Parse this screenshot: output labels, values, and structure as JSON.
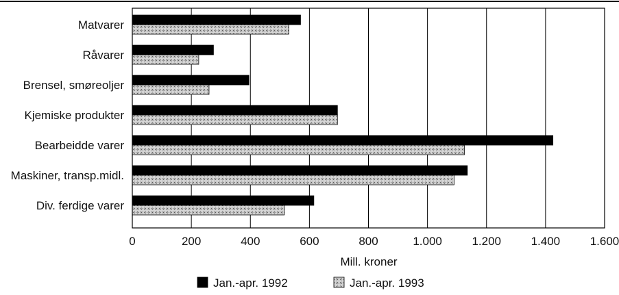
{
  "chart_data": {
    "type": "bar",
    "orientation": "horizontal",
    "title": "",
    "xlabel": "Mill. kroner",
    "ylabel": "",
    "categories": [
      "Matvarer",
      "Råvarer",
      "Brensel, smøreoljer",
      "Kjemiske produkter",
      "Bearbeidde varer",
      "Maskiner, transp.midl.",
      "Div. ferdige varer"
    ],
    "series": [
      {
        "name": "Jan.-apr. 1992",
        "color": "#000000",
        "pattern": "solid",
        "values": [
          570,
          275,
          395,
          695,
          1425,
          1135,
          615
        ]
      },
      {
        "name": "Jan.-apr. 1993",
        "color": "#b8b8b8",
        "pattern": "stipple",
        "values": [
          530,
          225,
          260,
          695,
          1125,
          1090,
          515
        ]
      }
    ],
    "xlim": [
      0,
      1600
    ],
    "xticks": [
      0,
      200,
      400,
      600,
      800,
      1000,
      1200,
      1400,
      1600
    ],
    "xtick_labels": [
      "0",
      "200",
      "400",
      "600",
      "800",
      "1.000",
      "1.200",
      "1.400",
      "1.600"
    ],
    "grid": "vertical",
    "legend_position": "bottom-center"
  }
}
